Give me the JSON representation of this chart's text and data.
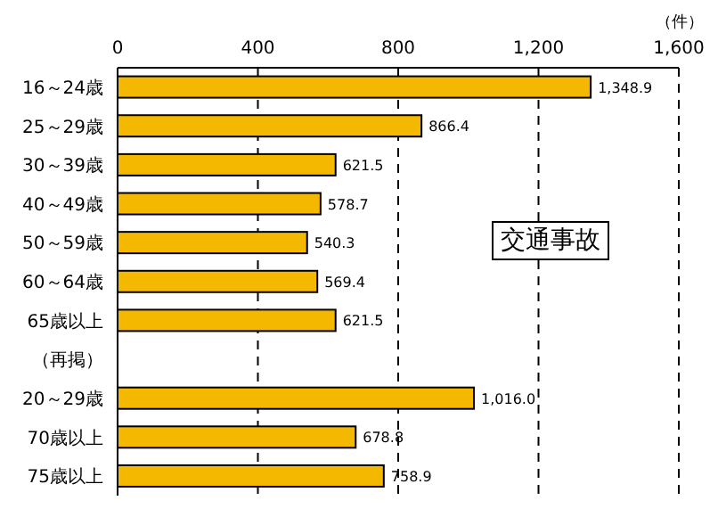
{
  "chart_data": {
    "type": "bar",
    "orientation": "horizontal",
    "categories": [
      "16～24歳",
      "25～29歳",
      "30～39歳",
      "40～49歳",
      "50～59歳",
      "60～64歳",
      "65歳以上",
      "（再掲）",
      "20～29歳",
      "70歳以上",
      "75歳以上"
    ],
    "values": [
      1348.9,
      866.4,
      621.5,
      578.7,
      540.3,
      569.4,
      621.5,
      null,
      1016.0,
      678.8,
      758.9
    ],
    "value_labels": [
      "1,348.9",
      "866.4",
      "621.5",
      "578.7",
      "540.3",
      "569.4",
      "621.5",
      null,
      "1,016.0",
      "678.8",
      "758.9"
    ],
    "color": "#f5b800",
    "xlabel": "（件）",
    "xlim": [
      0,
      1600
    ],
    "xticks": [
      0,
      400,
      800,
      {
        "value": 1200,
        "label": "1,200"
      },
      {
        "value": 1600,
        "label": "1,600"
      }
    ],
    "grid": "x",
    "annotations": [
      "交通事故"
    ]
  }
}
